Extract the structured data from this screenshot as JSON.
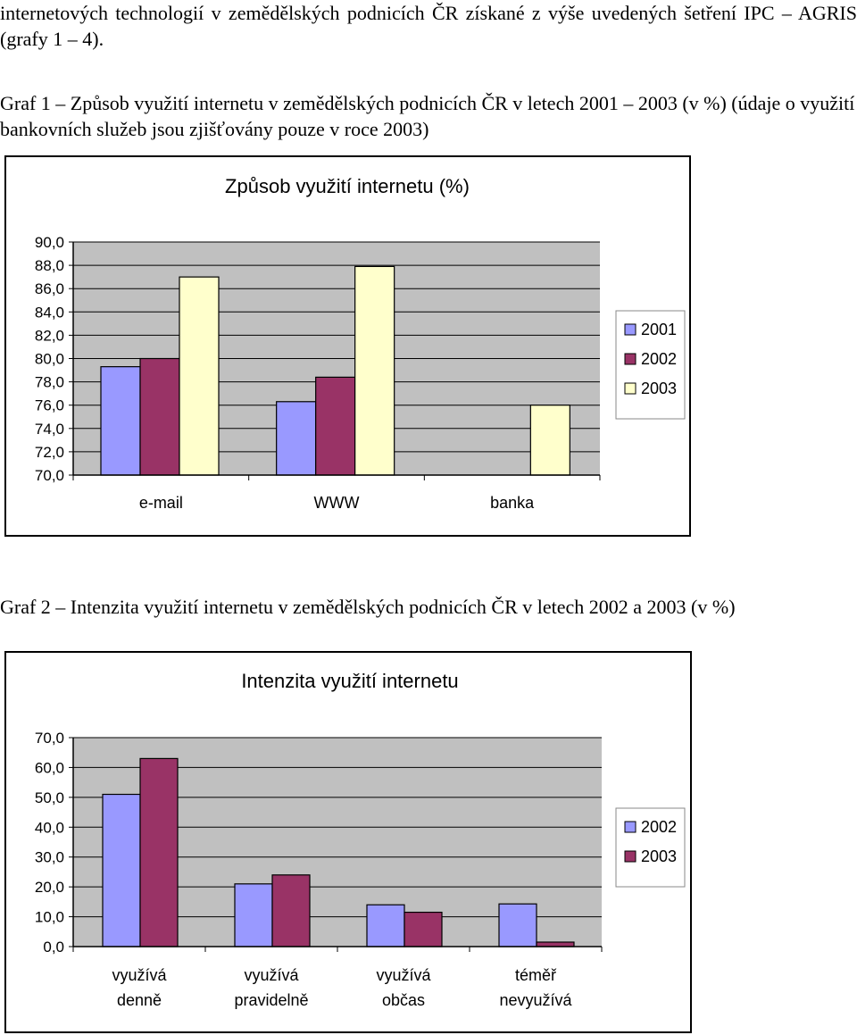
{
  "intro_text": "internetových technologií v zemědělských podnicích ČR získané z výše uvedených šetření IPC – AGRIS (grafy 1 – 4).",
  "graf1_caption": "Graf 1 – Způsob využití internetu v zemědělských podnicích ČR v letech 2001 – 2003 (v %) (údaje o využití bankovních služeb jsou zjišťovány pouze v roce 2003)",
  "graf2_caption": "Graf 2 – Intenzita využití internetu v zemědělských podnicích ČR v letech 2002 a 2003 (v %)",
  "colors": {
    "plot_bg": "#c0c0c0",
    "grid": "#000000",
    "series": [
      "#9999ff",
      "#993366",
      "#ffffcc"
    ]
  },
  "chart_data": [
    {
      "type": "bar",
      "title": "Způsob využití internetu (%)",
      "xlabel": "",
      "ylabel": "",
      "ylim": [
        70,
        90
      ],
      "ytick_step": 2,
      "ytick_labels": [
        "70,0",
        "72,0",
        "74,0",
        "76,0",
        "78,0",
        "80,0",
        "82,0",
        "84,0",
        "86,0",
        "88,0",
        "90,0"
      ],
      "categories": [
        "e-mail",
        "WWW",
        "banka"
      ],
      "grid": true,
      "legend_position": "right",
      "series": [
        {
          "name": "2001",
          "values": [
            79.3,
            76.3,
            null
          ]
        },
        {
          "name": "2002",
          "values": [
            80.0,
            78.4,
            null
          ]
        },
        {
          "name": "2003",
          "values": [
            87.0,
            87.9,
            76.0
          ]
        }
      ]
    },
    {
      "type": "bar",
      "title": "Intenzita využití internetu",
      "xlabel": "",
      "ylabel": "",
      "ylim": [
        0,
        70
      ],
      "ytick_step": 10,
      "ytick_labels": [
        "0,0",
        "10,0",
        "20,0",
        "30,0",
        "40,0",
        "50,0",
        "60,0",
        "70,0"
      ],
      "categories": [
        [
          "využívá",
          "denně"
        ],
        [
          "využívá",
          "pravidelně"
        ],
        [
          "využívá",
          "občas"
        ],
        [
          "téměř",
          "nevyužívá"
        ]
      ],
      "grid": true,
      "legend_position": "right",
      "series": [
        {
          "name": "2002",
          "values": [
            51.0,
            21.0,
            14.0,
            14.3
          ]
        },
        {
          "name": "2003",
          "values": [
            63.0,
            24.0,
            11.5,
            1.5
          ]
        }
      ]
    }
  ]
}
